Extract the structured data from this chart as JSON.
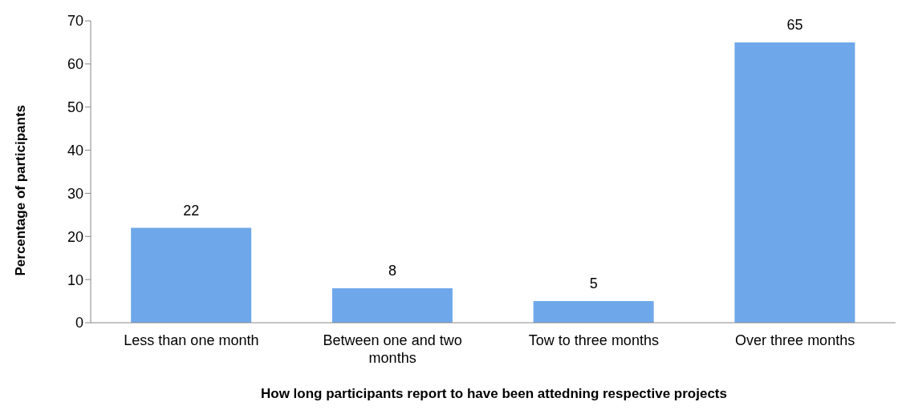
{
  "chart_data": {
    "type": "bar",
    "xlabel": "How long participants report to have been attedning respective projects",
    "ylabel": "Percentage of participants",
    "categories": [
      "Less than one month",
      "Between one and two months",
      "Tow to three months",
      "Over three months"
    ],
    "values": [
      22,
      8,
      5,
      65
    ],
    "color": "#6fa8ea",
    "ylim": [
      0,
      70
    ],
    "yticks": [
      0,
      10,
      20,
      30,
      40,
      50,
      60,
      70
    ],
    "data_labels": true,
    "grid": false
  }
}
